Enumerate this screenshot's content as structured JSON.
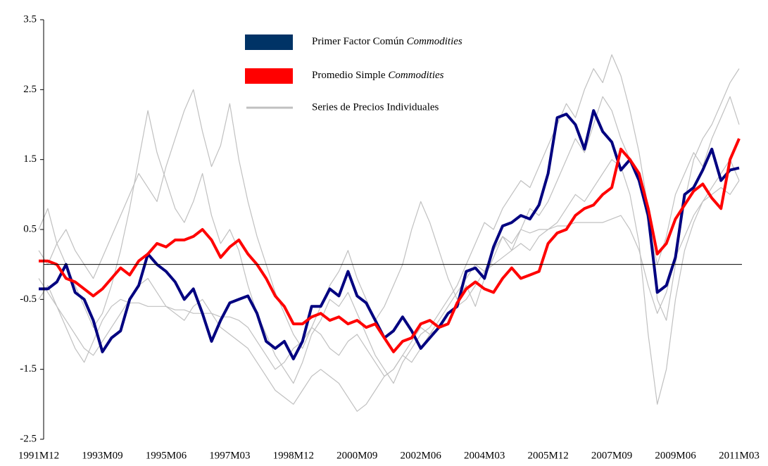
{
  "chart_data": {
    "type": "line",
    "categories": [
      "1991M12",
      null,
      null,
      null,
      null,
      null,
      null,
      "1993M09",
      null,
      null,
      null,
      null,
      null,
      null,
      "1995M06",
      null,
      null,
      null,
      null,
      null,
      null,
      "1997M03",
      null,
      null,
      null,
      null,
      null,
      null,
      "1998M12",
      null,
      null,
      null,
      null,
      null,
      null,
      "2000M09",
      null,
      null,
      null,
      null,
      null,
      null,
      "2002M06",
      null,
      null,
      null,
      null,
      null,
      null,
      "2004M03",
      null,
      null,
      null,
      null,
      null,
      null,
      "2005M12",
      null,
      null,
      null,
      null,
      null,
      null,
      "2007M09",
      null,
      null,
      null,
      null,
      null,
      null,
      "2009M06",
      null,
      null,
      null,
      null,
      null,
      null,
      "2011M03"
    ],
    "series": [
      {
        "name": "Primer Factor Común Commodities",
        "color": "#000080",
        "values": [
          -0.35,
          -0.35,
          -0.25,
          0.0,
          -0.4,
          -0.5,
          -0.8,
          -1.25,
          -1.05,
          -0.95,
          -0.5,
          -0.3,
          0.15,
          0.0,
          -0.1,
          -0.25,
          -0.5,
          -0.35,
          -0.7,
          -1.1,
          -0.8,
          -0.55,
          -0.5,
          -0.45,
          -0.7,
          -1.1,
          -1.2,
          -1.1,
          -1.35,
          -1.1,
          -0.6,
          -0.6,
          -0.35,
          -0.45,
          -0.1,
          -0.45,
          -0.55,
          -0.8,
          -1.05,
          -0.95,
          -0.75,
          -0.95,
          -1.2,
          -1.05,
          -0.9,
          -0.7,
          -0.6,
          -0.1,
          -0.05,
          -0.2,
          0.25,
          0.55,
          0.6,
          0.7,
          0.65,
          0.85,
          1.3,
          2.1,
          2.15,
          2.0,
          1.65,
          2.2,
          1.9,
          1.75,
          1.35,
          1.5,
          1.2,
          0.7,
          -0.4,
          -0.3,
          0.1,
          1.0,
          1.1,
          1.35,
          1.65,
          1.2,
          1.35,
          1.38
        ]
      },
      {
        "name": "Promedio Simple Commodities",
        "color": "#ff0000",
        "values": [
          0.05,
          0.05,
          0.0,
          -0.2,
          -0.25,
          -0.35,
          -0.45,
          -0.35,
          -0.2,
          -0.05,
          -0.15,
          0.05,
          0.15,
          0.3,
          0.25,
          0.35,
          0.35,
          0.4,
          0.5,
          0.35,
          0.1,
          0.25,
          0.35,
          0.15,
          0.0,
          -0.2,
          -0.45,
          -0.6,
          -0.85,
          -0.85,
          -0.75,
          -0.7,
          -0.8,
          -0.75,
          -0.85,
          -0.8,
          -0.9,
          -0.85,
          -1.05,
          -1.25,
          -1.1,
          -1.05,
          -0.85,
          -0.8,
          -0.9,
          -0.85,
          -0.55,
          -0.35,
          -0.25,
          -0.35,
          -0.4,
          -0.2,
          -0.05,
          -0.2,
          -0.15,
          -0.1,
          0.3,
          0.45,
          0.5,
          0.7,
          0.8,
          0.85,
          1.0,
          1.1,
          1.65,
          1.5,
          1.3,
          0.8,
          0.15,
          0.3,
          0.65,
          0.85,
          1.05,
          1.15,
          0.95,
          0.8,
          1.5,
          1.8
        ]
      }
    ],
    "individual_series": {
      "name": "Series de Precios Individuales",
      "color": "#c0c0c0",
      "lines": [
        [
          0.5,
          0.8,
          0.3,
          0.0,
          -0.3,
          -0.6,
          -0.9,
          -0.7,
          -0.3,
          0.2,
          0.8,
          1.5,
          2.2,
          1.6,
          1.2,
          0.8,
          0.6,
          0.9,
          1.3,
          0.7,
          0.3,
          0.5,
          0.2,
          -0.3,
          -0.7,
          -1.0,
          -1.3,
          -1.5,
          -1.7,
          -1.4,
          -1.0,
          -0.8,
          -0.5,
          -0.6,
          -0.4,
          -0.7,
          -1.0,
          -1.3,
          -1.5,
          -1.7,
          -1.4,
          -1.2,
          -1.0,
          -0.9,
          -0.7,
          -0.5,
          -0.3,
          0.0,
          0.3,
          0.6,
          0.5,
          0.8,
          1.0,
          1.2,
          1.1,
          1.4,
          1.7,
          2.0,
          2.3,
          2.1,
          2.5,
          2.8,
          2.6,
          3.0,
          2.7,
          2.2,
          1.6,
          0.8,
          -0.5,
          -0.8,
          0.0,
          0.9,
          1.5,
          1.8,
          2.0,
          2.3,
          2.6,
          2.8
        ],
        [
          -0.2,
          -0.4,
          -0.6,
          -0.8,
          -1.0,
          -1.2,
          -1.3,
          -1.1,
          -0.9,
          -0.7,
          -0.5,
          -0.3,
          -0.2,
          -0.4,
          -0.6,
          -0.7,
          -0.8,
          -0.6,
          -0.5,
          -0.7,
          -0.9,
          -1.0,
          -1.1,
          -1.2,
          -1.4,
          -1.6,
          -1.8,
          -1.9,
          -2.0,
          -1.8,
          -1.6,
          -1.5,
          -1.6,
          -1.7,
          -1.9,
          -2.1,
          -2.0,
          -1.8,
          -1.6,
          -1.5,
          -1.3,
          -1.4,
          -1.2,
          -1.0,
          -0.9,
          -0.7,
          -0.6,
          -0.5,
          -0.3,
          -0.1,
          0.0,
          0.1,
          0.2,
          0.3,
          0.2,
          0.4,
          0.5,
          0.6,
          0.8,
          1.0,
          0.9,
          1.1,
          1.3,
          1.5,
          1.4,
          1.0,
          0.3,
          -1.0,
          -2.0,
          -1.5,
          -0.5,
          0.2,
          0.6,
          0.9,
          1.1,
          1.3,
          1.5,
          1.2
        ],
        [
          0.2,
          0.0,
          0.3,
          0.5,
          0.2,
          0.0,
          -0.2,
          0.1,
          0.4,
          0.7,
          1.0,
          1.3,
          1.1,
          0.9,
          1.4,
          1.8,
          2.2,
          2.5,
          1.9,
          1.4,
          1.7,
          2.3,
          1.5,
          0.9,
          0.4,
          0.0,
          -0.4,
          -0.7,
          -1.0,
          -1.2,
          -0.9,
          -0.6,
          -0.3,
          -0.1,
          0.2,
          -0.2,
          -0.5,
          -0.8,
          -0.6,
          -0.3,
          0.0,
          0.5,
          0.9,
          0.6,
          0.2,
          -0.2,
          -0.5,
          -0.3,
          -0.6,
          -0.2,
          0.1,
          0.4,
          0.2,
          0.5,
          0.8,
          0.7,
          0.9,
          1.2,
          1.5,
          1.8,
          1.6,
          2.0,
          2.4,
          2.2,
          1.8,
          1.5,
          1.2,
          0.6,
          0.0,
          0.4,
          1.0,
          1.3,
          1.6,
          1.4,
          1.8,
          2.1,
          2.4,
          2.0
        ],
        [
          -0.5,
          -0.3,
          -0.6,
          -0.9,
          -1.2,
          -1.4,
          -1.1,
          -0.8,
          -0.6,
          -0.5,
          -0.55,
          -0.55,
          -0.6,
          -0.6,
          -0.6,
          -0.65,
          -0.65,
          -0.7,
          -0.7,
          -0.7,
          -0.75,
          -0.75,
          -0.8,
          -0.9,
          -1.1,
          -1.3,
          -1.5,
          -1.4,
          -1.2,
          -1.1,
          -0.9,
          -1.0,
          -1.2,
          -1.3,
          -1.1,
          -1.0,
          -1.2,
          -1.4,
          -1.6,
          -1.5,
          -1.3,
          -1.1,
          -0.9,
          -1.0,
          -0.8,
          -0.6,
          -0.4,
          -0.2,
          0.0,
          -0.1,
          0.2,
          0.4,
          0.3,
          0.5,
          0.45,
          0.5,
          0.5,
          0.55,
          0.55,
          0.6,
          0.6,
          0.6,
          0.6,
          0.65,
          0.7,
          0.5,
          0.2,
          -0.3,
          -0.7,
          -0.4,
          0.1,
          0.4,
          0.7,
          0.9,
          1.0,
          1.1,
          1.0,
          1.2
        ]
      ]
    },
    "reference_line": 0,
    "ylim": [
      -2.5,
      3.5
    ],
    "yticks": [
      -2.5,
      -1.5,
      -0.5,
      0.5,
      1.5,
      2.5,
      3.5
    ]
  }
}
